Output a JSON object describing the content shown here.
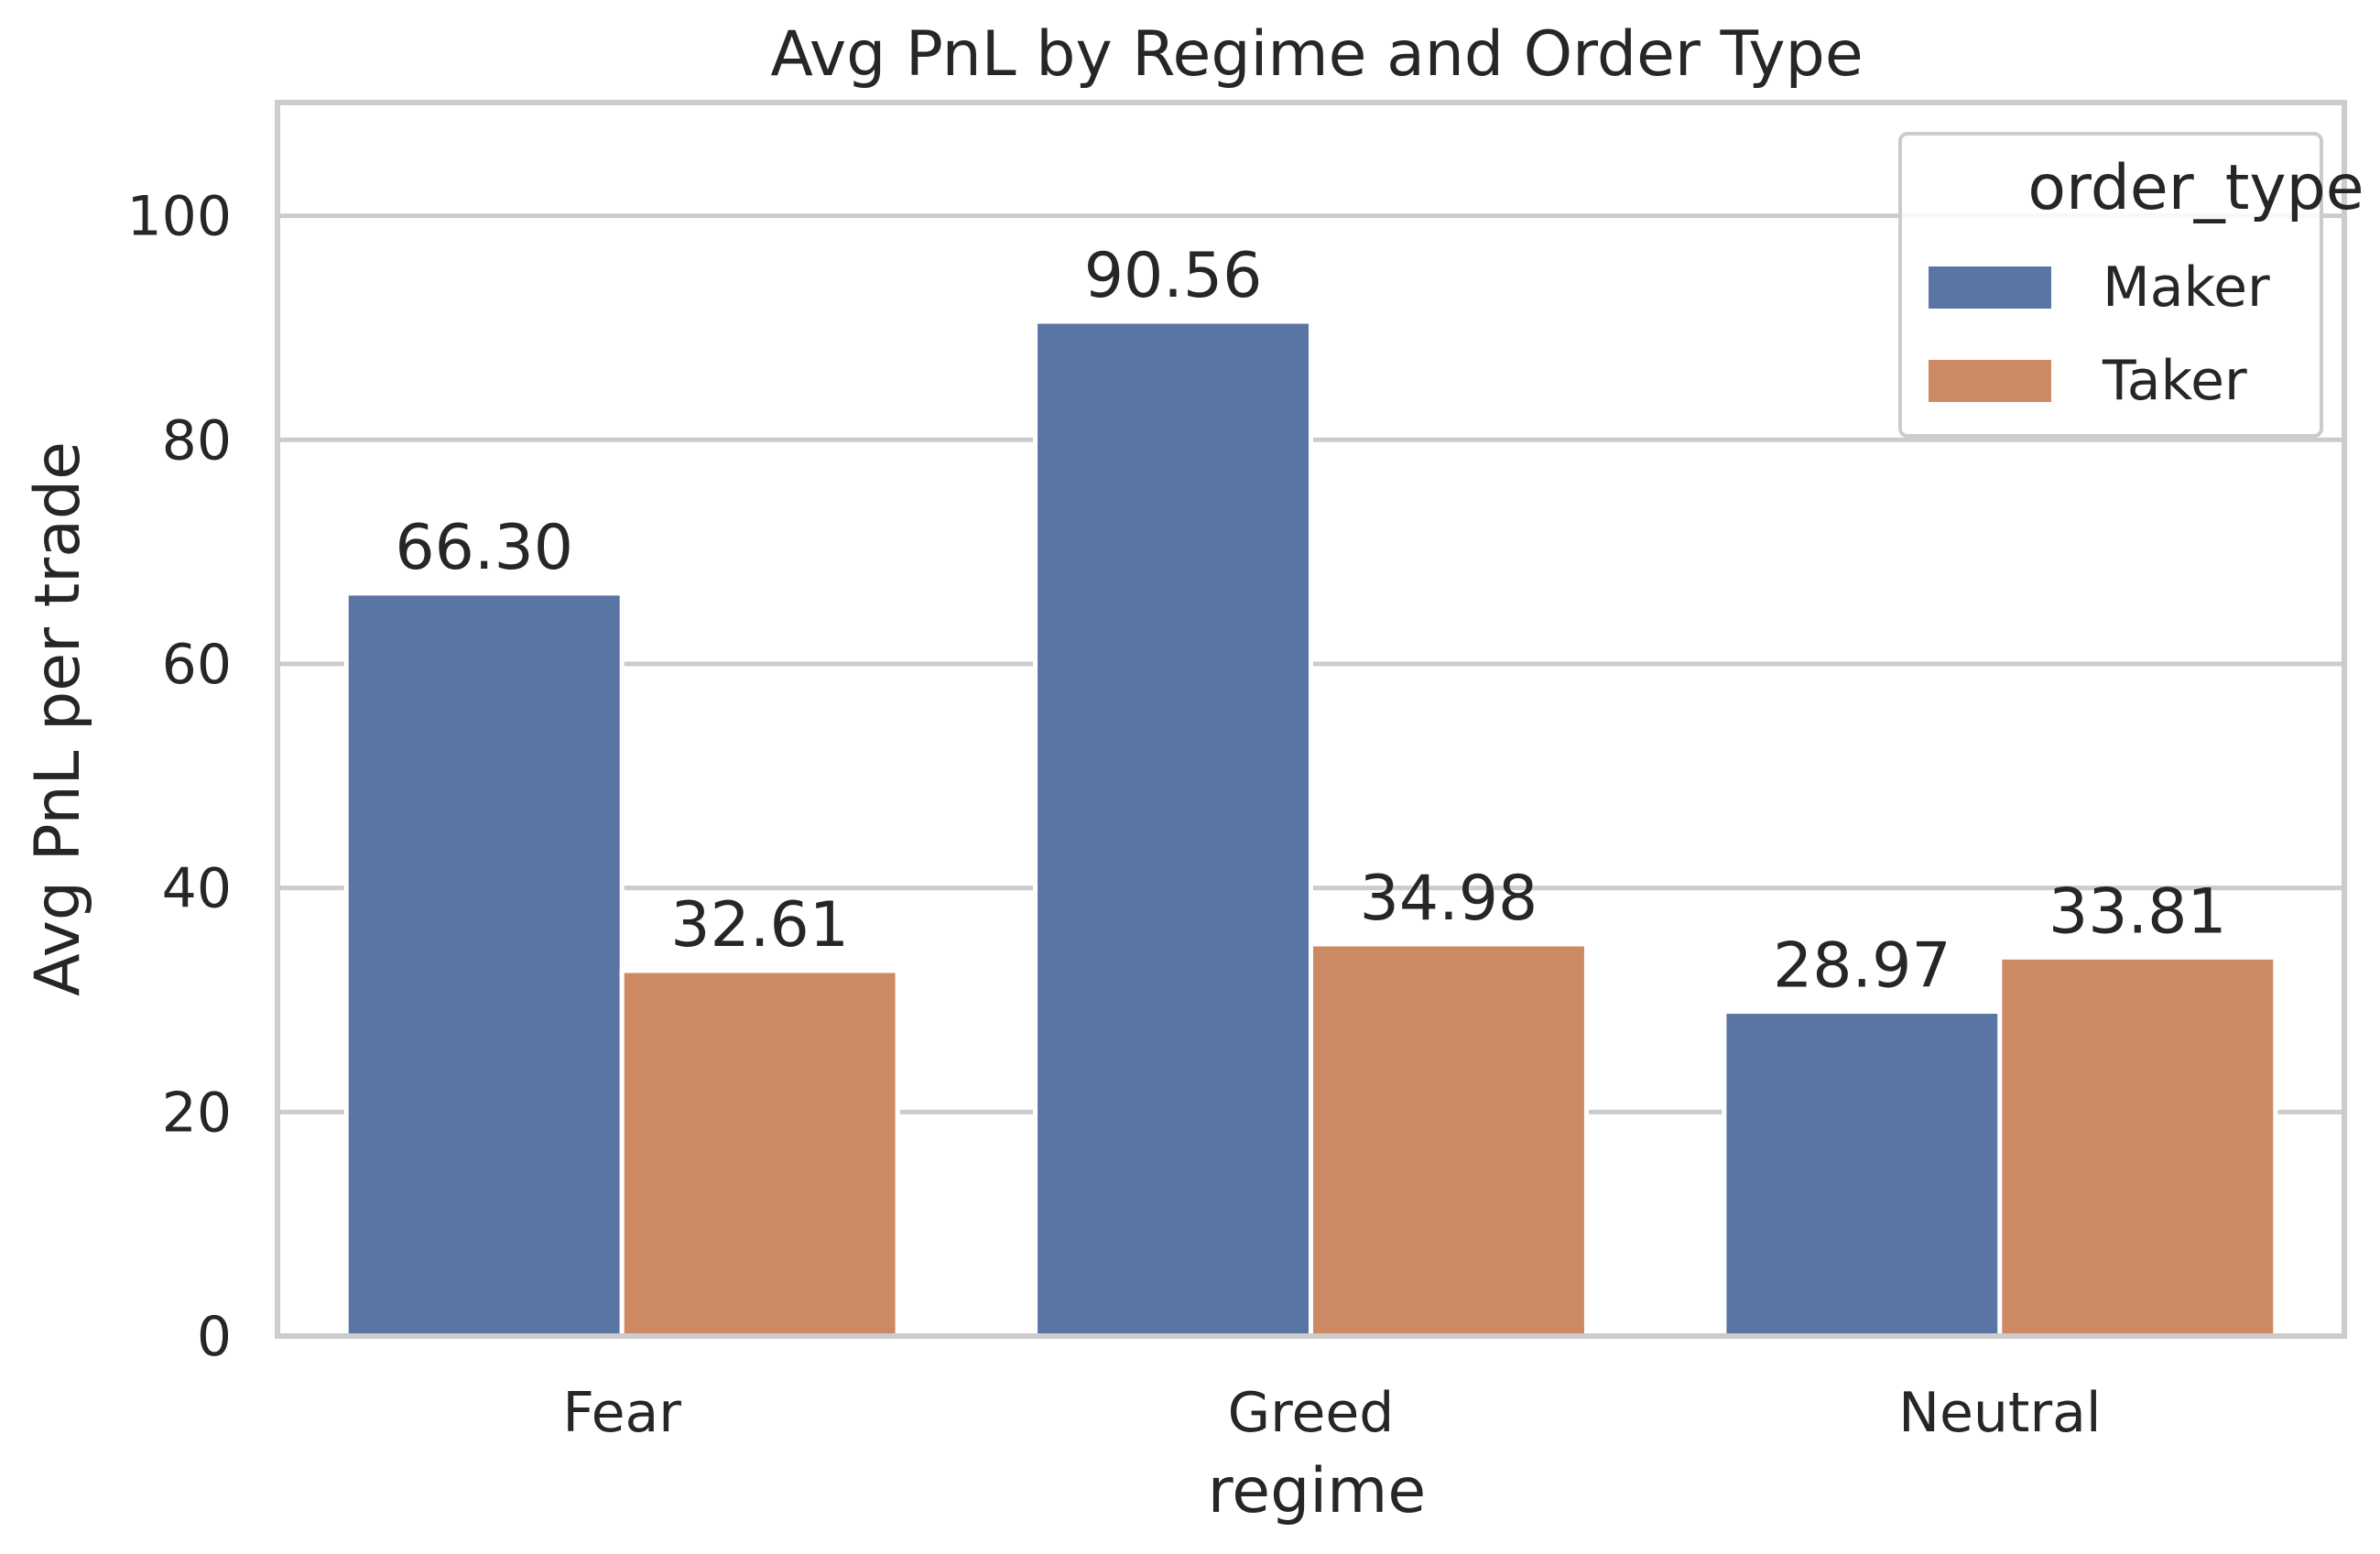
{
  "chart_data": {
    "type": "bar",
    "title": "Avg PnL by Regime and Order Type",
    "xlabel": "regime",
    "ylabel": "Avg PnL per trade",
    "categories": [
      "Fear",
      "Greed",
      "Neutral"
    ],
    "series": [
      {
        "name": "Maker",
        "values": [
          66.3,
          90.56,
          28.97
        ],
        "color": "#5875a4",
        "value_labels": [
          "66.30",
          "90.56",
          "28.97"
        ]
      },
      {
        "name": "Taker",
        "values": [
          32.61,
          34.98,
          33.81
        ],
        "color": "#cc8963",
        "value_labels": [
          "32.61",
          "34.98",
          "33.81"
        ]
      }
    ],
    "ylim": [
      0,
      110.1
    ],
    "yticks": [
      0,
      20,
      40,
      60,
      80,
      100
    ],
    "ytick_labels": [
      "0",
      "20",
      "40",
      "60",
      "80",
      "100"
    ],
    "grid": "horizontal",
    "legend": {
      "title": "order_type",
      "placement": "top-right"
    }
  }
}
